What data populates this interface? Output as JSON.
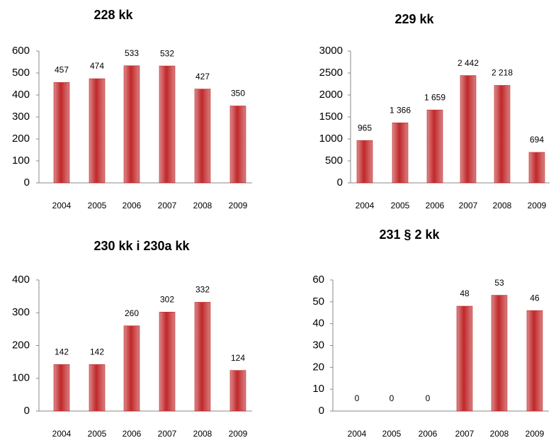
{
  "chart_data": [
    {
      "type": "bar",
      "title": "228 kk",
      "categories": [
        "2004",
        "2005",
        "2006",
        "2007",
        "2008",
        "2009"
      ],
      "values": [
        457,
        474,
        533,
        532,
        427,
        350
      ],
      "color": "#c0282a",
      "ylim": [
        0,
        600
      ],
      "yticks": [
        0,
        100,
        200,
        300,
        400,
        500,
        600
      ]
    },
    {
      "type": "bar",
      "title": "229 kk",
      "categories": [
        "2004",
        "2005",
        "2006",
        "2007",
        "2008",
        "2009"
      ],
      "values": [
        965,
        1366,
        1659,
        2442,
        2218,
        694
      ],
      "value_labels": [
        "965",
        "1 366",
        "1 659",
        "2 442",
        "2 218",
        "694"
      ],
      "color": "#c0282a",
      "ylim": [
        0,
        3000
      ],
      "yticks": [
        0,
        500,
        1000,
        1500,
        2000,
        2500,
        3000
      ]
    },
    {
      "type": "bar",
      "title": "230 kk i 230a kk",
      "categories": [
        "2004",
        "2005",
        "2006",
        "2007",
        "2008",
        "2009"
      ],
      "values": [
        142,
        142,
        260,
        302,
        332,
        124
      ],
      "color": "#c0282a",
      "ylim": [
        0,
        400
      ],
      "yticks": [
        0,
        100,
        200,
        300,
        400
      ]
    },
    {
      "type": "bar",
      "title": "231 § 2 kk",
      "categories": [
        "2004",
        "2005",
        "2006",
        "2007",
        "2008",
        "2009"
      ],
      "values": [
        0,
        0,
        0,
        48,
        53,
        46
      ],
      "color": "#c0282a",
      "ylim": [
        0,
        60
      ],
      "yticks": [
        0,
        10,
        20,
        30,
        40,
        50,
        60
      ]
    }
  ]
}
